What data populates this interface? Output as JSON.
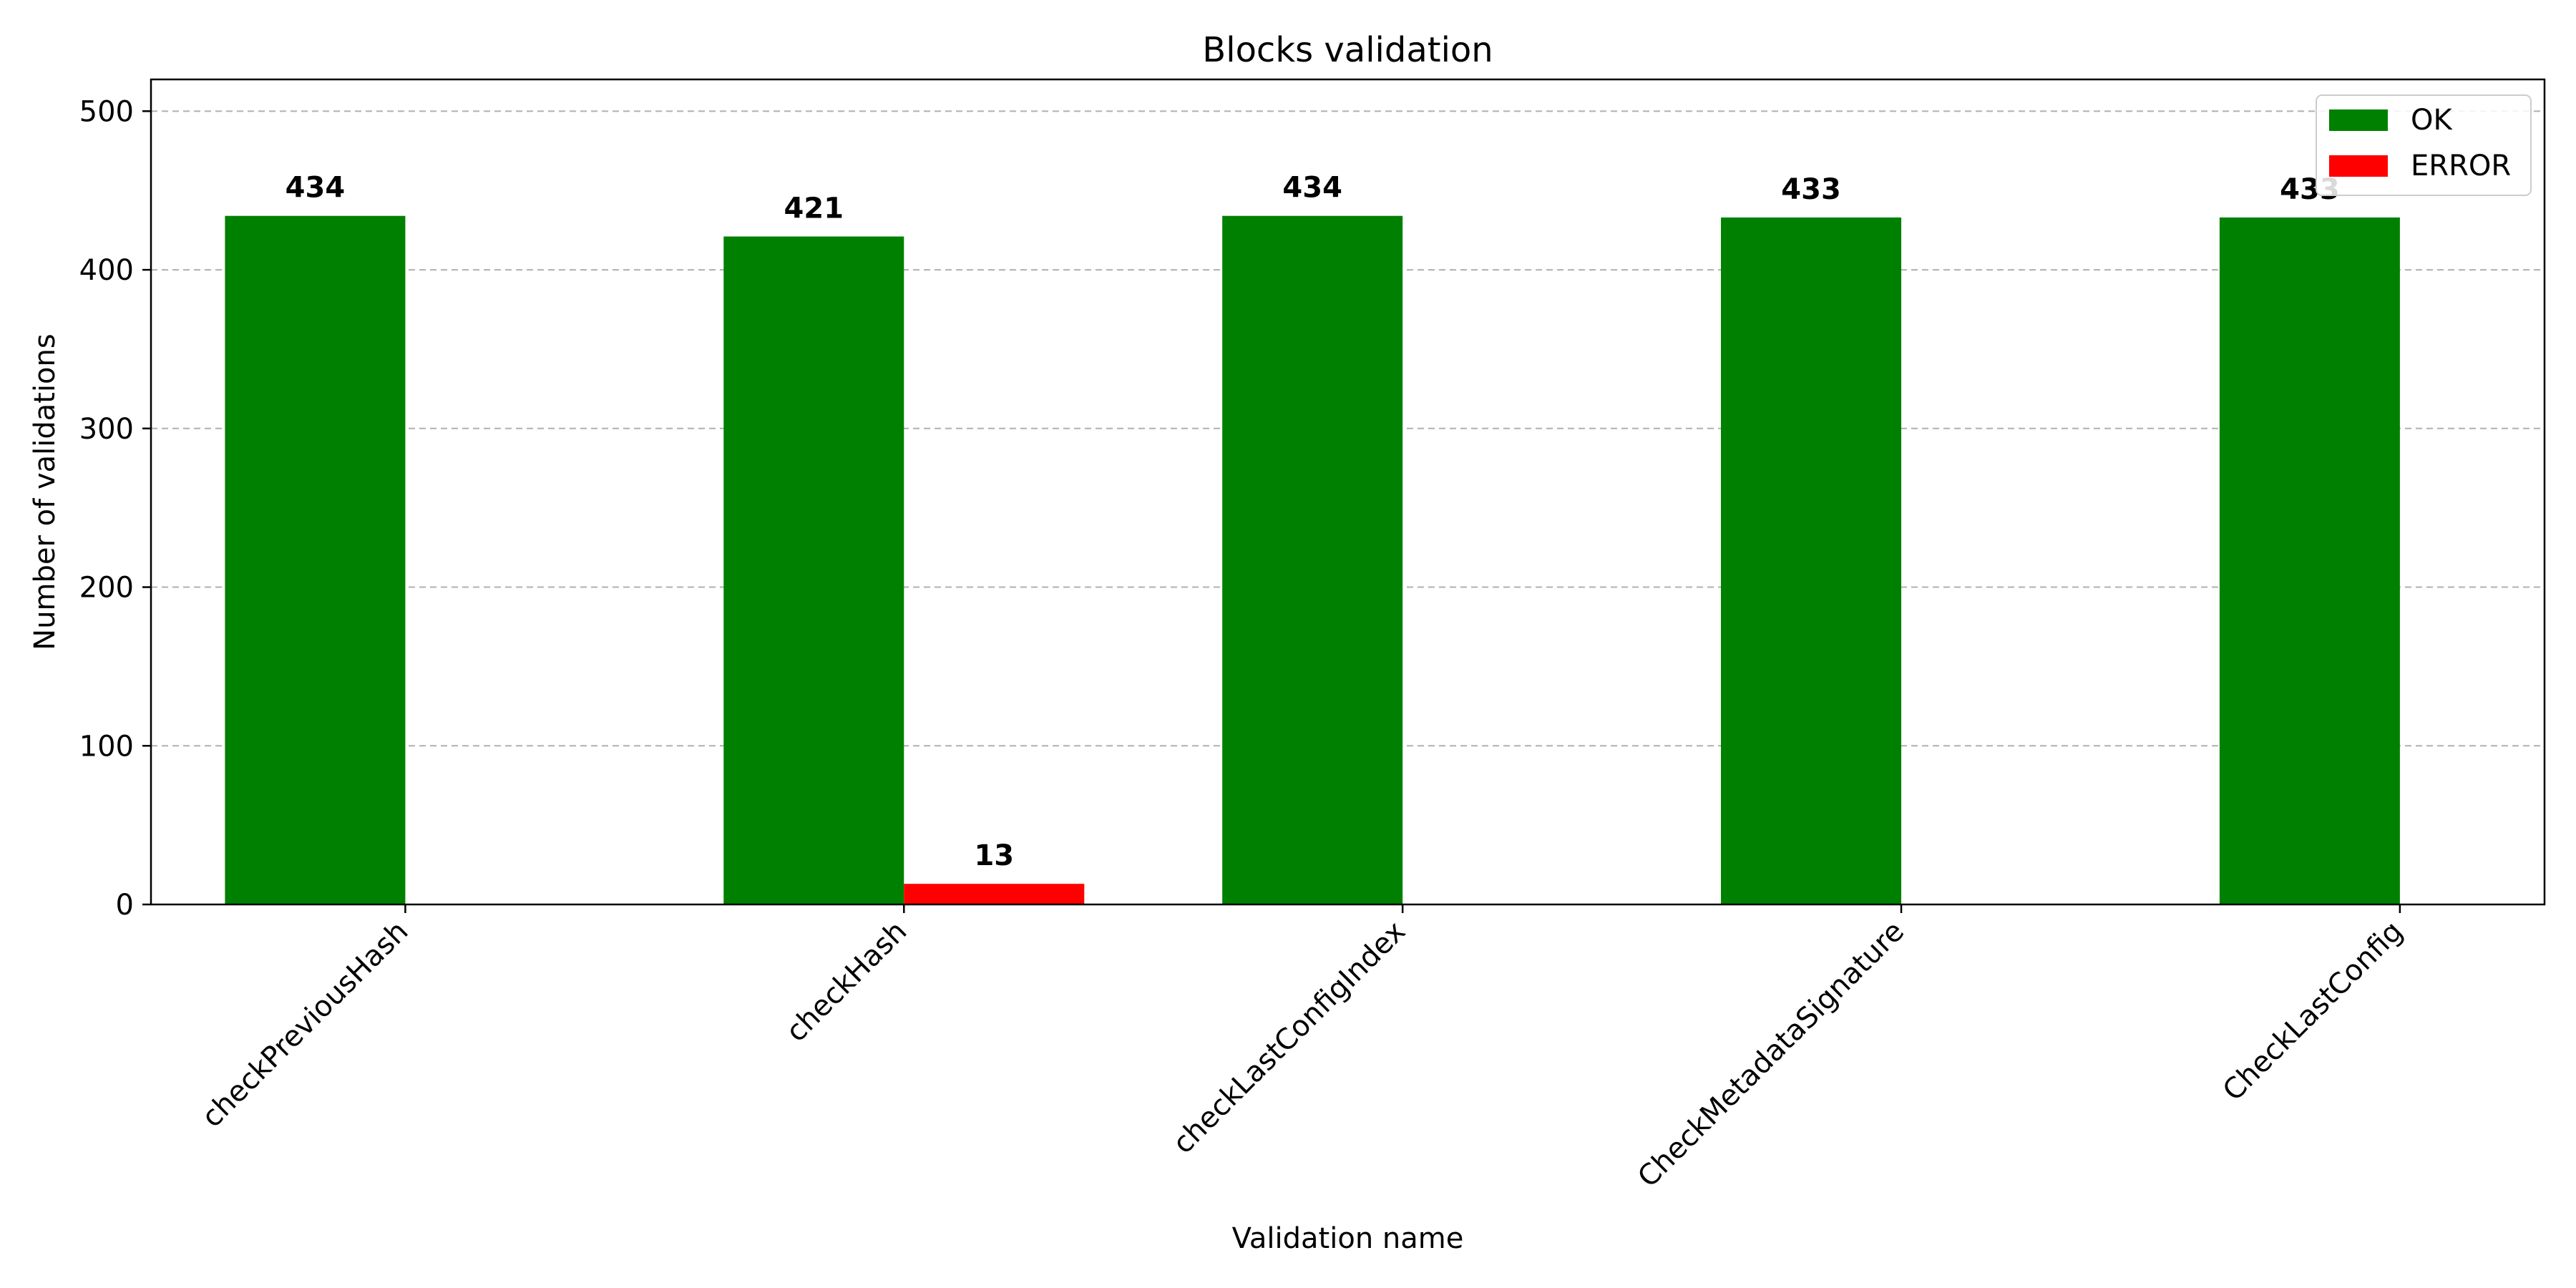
{
  "chart_data": {
    "type": "bar",
    "title": "Blocks validation",
    "xlabel": "Validation name",
    "ylabel": "Number of validations",
    "categories": [
      "checkPreviousHash",
      "checkHash",
      "checkLastConfigIndex",
      "CheckMetadataSignature",
      "CheckLastConfig"
    ],
    "series": [
      {
        "name": "OK",
        "color": "#008000",
        "values": [
          434,
          421,
          434,
          433,
          433
        ]
      },
      {
        "name": "ERROR",
        "color": "#ff0000",
        "values": [
          0,
          13,
          0,
          0,
          0
        ]
      }
    ],
    "ylim": [
      0,
      520
    ],
    "yticks": [
      0,
      100,
      200,
      300,
      400,
      500
    ],
    "grid": true,
    "legend_position": "top-right"
  }
}
